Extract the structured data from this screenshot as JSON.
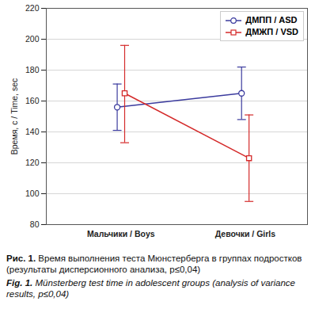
{
  "chart_data": {
    "type": "line",
    "title": "Рис. 1. Время выполнения теста Мюнстерберга в группах подростков (результаты дисперсионного анализа, p≤0,04)",
    "subtitle": "Fig. 1. Münsterberg test time in adolescent groups (analysis of variance results, p≤0,04)",
    "y_label": "Время, с / Time, sec",
    "categories": [
      "Мальчики / Boys",
      "Девочки / Girls"
    ],
    "series": [
      {
        "name": "ДМПП / ASD",
        "color": "#3b3b9e",
        "marker": "circle",
        "values": [
          156,
          165
        ],
        "lower": [
          141,
          148
        ],
        "upper": [
          171,
          182
        ]
      },
      {
        "name": "ДМЖП / VSD",
        "color": "#d42a2a",
        "marker": "square",
        "values": [
          165,
          123
        ],
        "lower": [
          133,
          95
        ],
        "upper": [
          196,
          151
        ]
      }
    ],
    "ylim": [
      80,
      220
    ],
    "yticks": [
      80,
      100,
      120,
      140,
      160,
      180,
      200,
      220
    ],
    "grid": true,
    "legend": "top-right"
  }
}
